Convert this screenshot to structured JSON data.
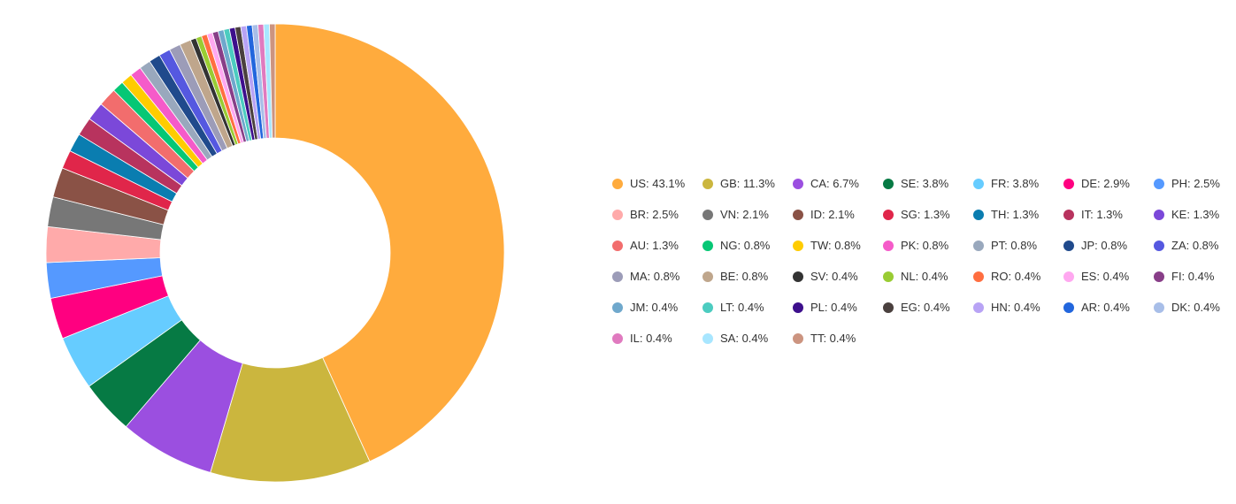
{
  "chart_data": {
    "type": "pie",
    "title": "",
    "donut": true,
    "legend_position": "right",
    "slices": [
      {
        "label": "US",
        "value": 43.1,
        "color": "#FFAB3D"
      },
      {
        "label": "GB",
        "value": 11.3,
        "color": "#CBB63E"
      },
      {
        "label": "CA",
        "value": 6.7,
        "color": "#9B4FE0"
      },
      {
        "label": "SE",
        "value": 3.8,
        "color": "#067A44"
      },
      {
        "label": "FR",
        "value": 3.8,
        "color": "#66CCFF"
      },
      {
        "label": "DE",
        "value": 2.9,
        "color": "#FF0080"
      },
      {
        "label": "PH",
        "value": 2.5,
        "color": "#5599FF"
      },
      {
        "label": "BR",
        "value": 2.5,
        "color": "#FFAAAA"
      },
      {
        "label": "VN",
        "value": 2.1,
        "color": "#777777"
      },
      {
        "label": "ID",
        "value": 2.1,
        "color": "#8A5246"
      },
      {
        "label": "SG",
        "value": 1.3,
        "color": "#E0264A"
      },
      {
        "label": "TH",
        "value": 1.3,
        "color": "#0A7DB0"
      },
      {
        "label": "IT",
        "value": 1.3,
        "color": "#B8335E"
      },
      {
        "label": "KE",
        "value": 1.3,
        "color": "#7B48D9"
      },
      {
        "label": "AU",
        "value": 1.3,
        "color": "#F26D6D"
      },
      {
        "label": "NG",
        "value": 0.8,
        "color": "#06C775"
      },
      {
        "label": "TW",
        "value": 0.8,
        "color": "#FFCC00"
      },
      {
        "label": "PK",
        "value": 0.8,
        "color": "#F55BC9"
      },
      {
        "label": "PT",
        "value": 0.8,
        "color": "#99A8BD"
      },
      {
        "label": "JP",
        "value": 0.8,
        "color": "#204A8C"
      },
      {
        "label": "ZA",
        "value": 0.8,
        "color": "#5558E0"
      },
      {
        "label": "MA",
        "value": 0.8,
        "color": "#9C9CB8"
      },
      {
        "label": "BE",
        "value": 0.8,
        "color": "#BFA68C"
      },
      {
        "label": "SV",
        "value": 0.4,
        "color": "#333333"
      },
      {
        "label": "NL",
        "value": 0.4,
        "color": "#99CC33"
      },
      {
        "label": "RO",
        "value": 0.4,
        "color": "#FF6E40"
      },
      {
        "label": "ES",
        "value": 0.4,
        "color": "#FFA8F0"
      },
      {
        "label": "FI",
        "value": 0.4,
        "color": "#883E88"
      },
      {
        "label": "JM",
        "value": 0.4,
        "color": "#6FA8CC"
      },
      {
        "label": "LT",
        "value": 0.4,
        "color": "#4CCCC0"
      },
      {
        "label": "PL",
        "value": 0.4,
        "color": "#3D0F8C"
      },
      {
        "label": "EG",
        "value": 0.4,
        "color": "#4A403E"
      },
      {
        "label": "HN",
        "value": 0.4,
        "color": "#B8A3F5"
      },
      {
        "label": "AR",
        "value": 0.4,
        "color": "#2266DD"
      },
      {
        "label": "DK",
        "value": 0.4,
        "color": "#A8BEE8"
      },
      {
        "label": "IL",
        "value": 0.4,
        "color": "#E07ABF"
      },
      {
        "label": "SA",
        "value": 0.4,
        "color": "#A8E6FF"
      },
      {
        "label": "TT",
        "value": 0.4,
        "color": "#CC9480"
      }
    ]
  }
}
